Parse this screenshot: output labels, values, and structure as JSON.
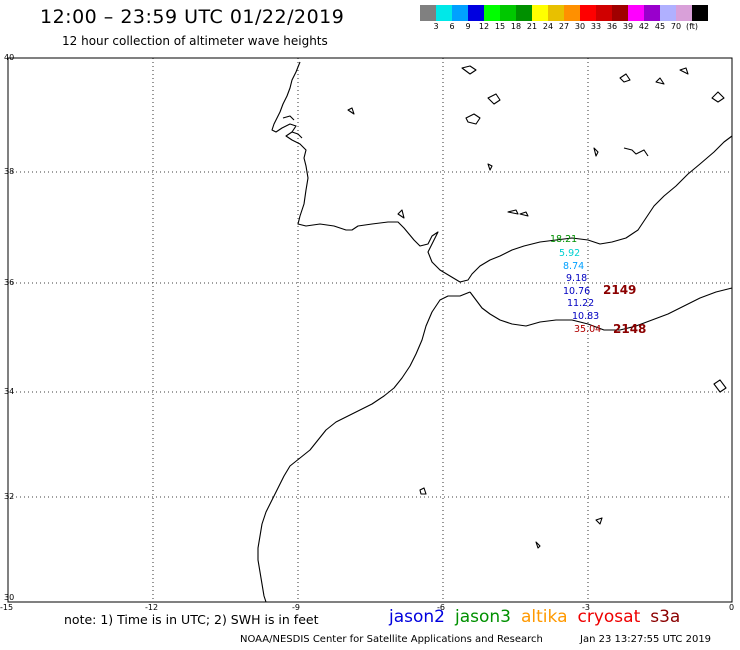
{
  "header": {
    "title": "12:00 – 23:59 UTC 01/22/2019",
    "subtitle": "12 hour collection of altimeter wave heights"
  },
  "colorbar": {
    "colors": [
      "#808080",
      "#00e8e8",
      "#00a0ff",
      "#0000e0",
      "#00ff00",
      "#00c800",
      "#009000",
      "#ffff00",
      "#e8c000",
      "#ff9000",
      "#ff0000",
      "#d00000",
      "#a00000",
      "#ff00ff",
      "#9900cc",
      "#b0b0ff",
      "#d9a0d9",
      "#000000"
    ],
    "labels": [
      "3",
      "6",
      "9",
      "12",
      "15",
      "18",
      "21",
      "24",
      "27",
      "30",
      "33",
      "36",
      "39",
      "42",
      "45",
      "70",
      "(ft)"
    ]
  },
  "axes": {
    "lon_labels": [
      "-15",
      "-12",
      "-9",
      "-6",
      "-3",
      "0"
    ],
    "lat_labels": [
      "40",
      "38",
      "36",
      "34",
      "32",
      "30"
    ]
  },
  "observations": [
    {
      "value": "18.21",
      "color": "#009000"
    },
    {
      "value": "5.92",
      "color": "#00d0d0"
    },
    {
      "value": "8.74",
      "color": "#00a0ff"
    },
    {
      "value": "9.18",
      "color": "#0000c0"
    },
    {
      "value": "10.76",
      "color": "#0000c0"
    },
    {
      "value": "11.22",
      "color": "#0000c0"
    },
    {
      "value": "10.83",
      "color": "#0000c0"
    },
    {
      "value": "35.04",
      "color": "#b00000"
    }
  ],
  "pass_labels": [
    {
      "value": "2149",
      "color": "#8b0000"
    },
    {
      "value": "2148",
      "color": "#8b0000"
    }
  ],
  "note": "note: 1) Time is in UTC; 2) SWH is in feet",
  "satellites": [
    {
      "name": "jason2",
      "color": "#0000dd"
    },
    {
      "name": "jason3",
      "color": "#009000"
    },
    {
      "name": "altika",
      "color": "#ff9900"
    },
    {
      "name": "cryosat",
      "color": "#ee0000"
    },
    {
      "name": "s3a",
      "color": "#8b0000"
    }
  ],
  "footer": {
    "credit": "NOAA/NESDIS Center for Satellite Applications and Research",
    "timestamp": "Jan 23 13:27:55 UTC 2019"
  }
}
